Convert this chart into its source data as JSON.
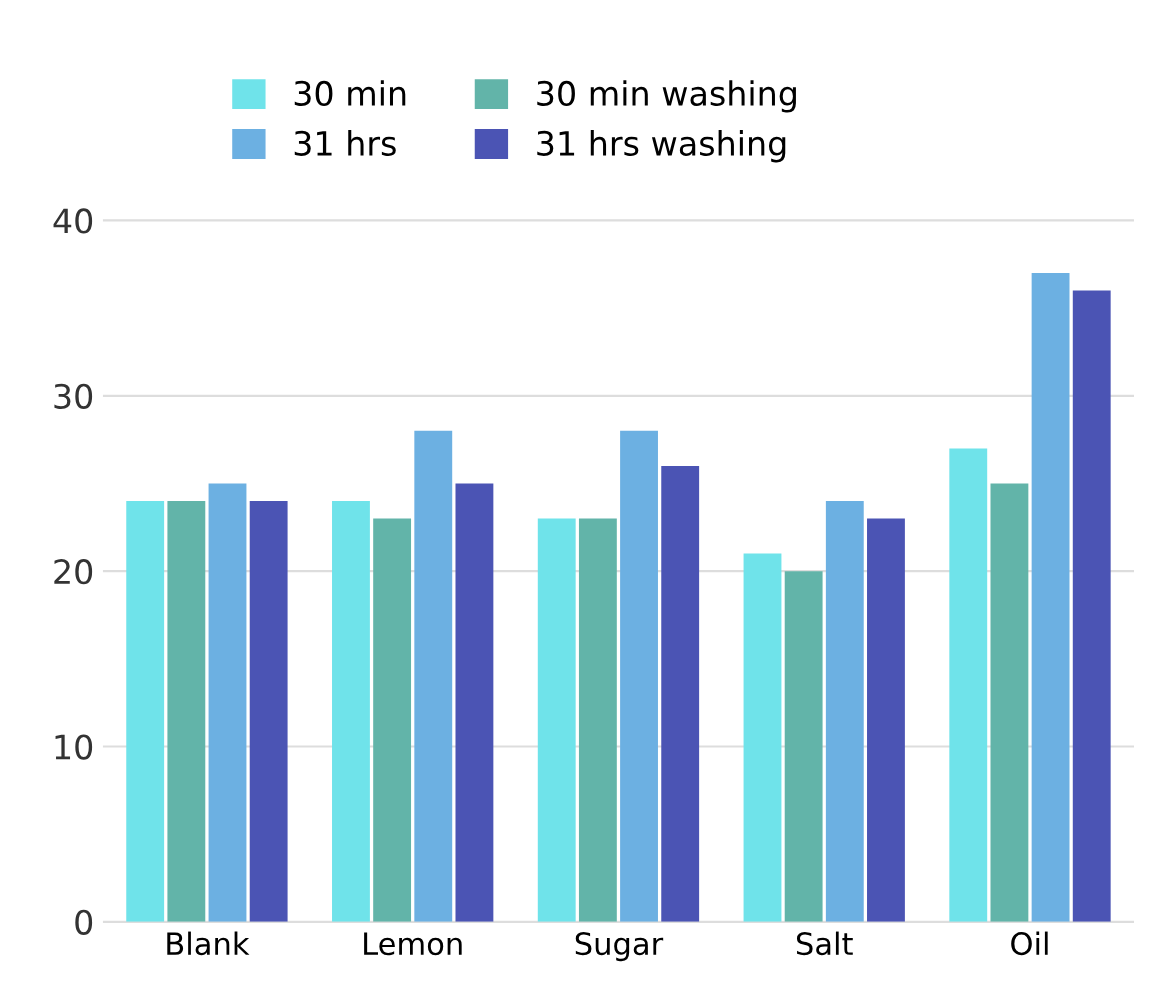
{
  "chart_data": {
    "type": "bar",
    "categories": [
      "Blank",
      "Lemon",
      "Sugar",
      "Salt",
      "Oil"
    ],
    "series": [
      {
        "name": "30 min",
        "color": "#6fe3ea",
        "values": [
          24,
          24,
          23,
          21,
          27
        ]
      },
      {
        "name": "30 min washing",
        "color": "#62b4a9",
        "values": [
          24,
          23,
          23,
          20,
          25
        ]
      },
      {
        "name": "31 hrs",
        "color": "#6cb0e2",
        "values": [
          25,
          28,
          28,
          24,
          37
        ]
      },
      {
        "name": "31 hrs washing",
        "color": "#4b54b4",
        "values": [
          24,
          25,
          26,
          23,
          36
        ]
      }
    ],
    "ylim": [
      0,
      40
    ],
    "yticks": [
      0,
      10,
      20,
      30,
      40
    ],
    "grid": "y",
    "legend": "top"
  }
}
